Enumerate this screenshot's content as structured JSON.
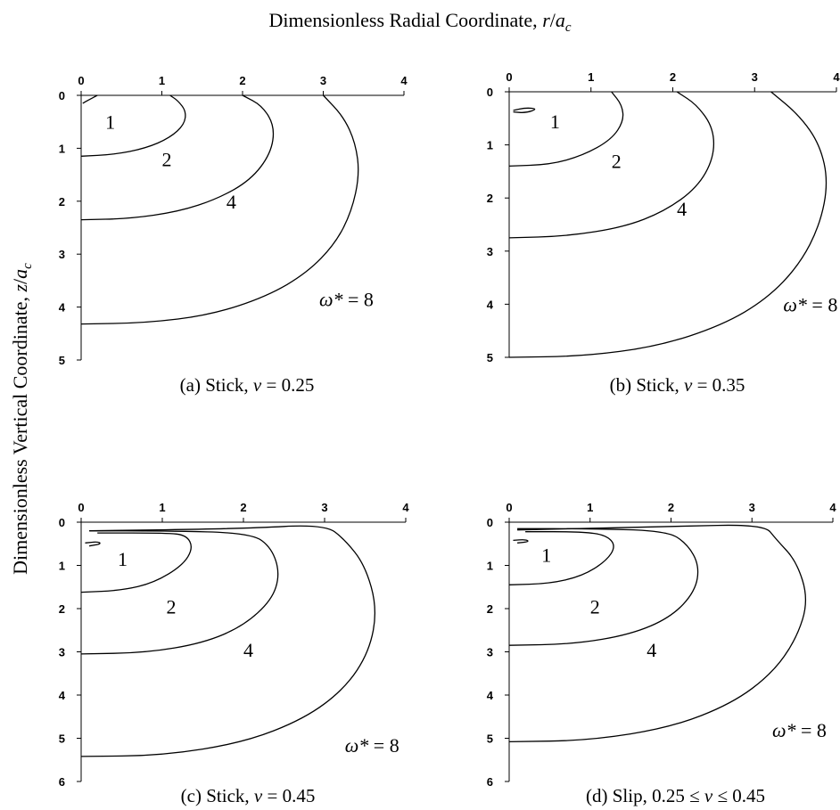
{
  "figure": {
    "top_label": "Dimensionless Radial Coordinate, r/a",
    "top_label_main": "Dimensionless Radial Coordinate, ",
    "top_label_var": "r",
    "top_label_slash": "/",
    "top_label_sub_base": "a",
    "top_label_sub": "c",
    "side_label_main": "Dimensionless Vertical Coordinate, ",
    "side_label_var": "z",
    "side_label_slash": "/",
    "side_label_sub_base": "a",
    "side_label_sub": "c"
  },
  "chart_data": [
    {
      "type": "line",
      "panel": "a",
      "caption": "(a) Stick, ν = 0.25",
      "x_ticks": [
        "0",
        "1",
        "2",
        "3",
        "4"
      ],
      "y_ticks": [
        "0",
        "1",
        "2",
        "3",
        "4",
        "5"
      ],
      "xlim": [
        0,
        4
      ],
      "ylim": [
        0,
        5
      ],
      "contours": [
        {
          "label": "1",
          "label_pos": [
            0.3,
            0.5
          ],
          "points": [
            [
              0.02,
              0.15
            ],
            [
              0.1,
              0.08
            ],
            [
              0.2,
              0.0
            ]
          ]
        },
        {
          "label": "2",
          "label_pos": [
            1.0,
            1.2
          ],
          "points": [
            [
              0,
              1.15
            ],
            [
              0.4,
              1.12
            ],
            [
              0.8,
              1.0
            ],
            [
              1.1,
              0.8
            ],
            [
              1.28,
              0.55
            ],
            [
              1.3,
              0.3
            ],
            [
              1.2,
              0.1
            ],
            [
              1.1,
              0.0
            ]
          ]
        },
        {
          "label": "4",
          "label_pos": [
            1.8,
            2.0
          ],
          "points": [
            [
              0,
              2.35
            ],
            [
              0.6,
              2.33
            ],
            [
              1.2,
              2.2
            ],
            [
              1.7,
              1.95
            ],
            [
              2.1,
              1.6
            ],
            [
              2.35,
              1.1
            ],
            [
              2.4,
              0.6
            ],
            [
              2.25,
              0.2
            ],
            [
              2.0,
              0.0
            ]
          ]
        },
        {
          "label": "ω* = 8",
          "label_pos": [
            2.95,
            3.85
          ],
          "points": [
            [
              0,
              4.32
            ],
            [
              0.8,
              4.3
            ],
            [
              1.6,
              4.15
            ],
            [
              2.3,
              3.8
            ],
            [
              2.8,
              3.35
            ],
            [
              3.15,
              2.8
            ],
            [
              3.35,
              2.2
            ],
            [
              3.45,
              1.5
            ],
            [
              3.4,
              0.9
            ],
            [
              3.25,
              0.4
            ],
            [
              3.0,
              0.0
            ]
          ]
        }
      ]
    },
    {
      "type": "line",
      "panel": "b",
      "caption": "(b) Stick, ν = 0.35",
      "x_ticks": [
        "0",
        "1",
        "2",
        "3",
        "4"
      ],
      "y_ticks": [
        "0",
        "1",
        "2",
        "3",
        "4",
        "5"
      ],
      "xlim": [
        0,
        4
      ],
      "ylim": [
        0,
        5
      ],
      "contours": [
        {
          "label": "1",
          "label_pos": [
            0.5,
            0.55
          ],
          "points": [
            [
              0.05,
              0.35
            ],
            [
              0.2,
              0.3
            ],
            [
              0.35,
              0.32
            ],
            [
              0.2,
              0.4
            ],
            [
              0.05,
              0.38
            ]
          ]
        },
        {
          "label": "2",
          "label_pos": [
            1.25,
            1.3
          ],
          "points": [
            [
              0,
              1.4
            ],
            [
              0.5,
              1.37
            ],
            [
              0.9,
              1.2
            ],
            [
              1.25,
              0.9
            ],
            [
              1.4,
              0.55
            ],
            [
              1.38,
              0.25
            ],
            [
              1.25,
              0.0
            ]
          ]
        },
        {
          "label": "4",
          "label_pos": [
            2.05,
            2.2
          ],
          "points": [
            [
              0,
              2.75
            ],
            [
              0.7,
              2.72
            ],
            [
              1.4,
              2.55
            ],
            [
              1.9,
              2.25
            ],
            [
              2.3,
              1.8
            ],
            [
              2.5,
              1.25
            ],
            [
              2.5,
              0.7
            ],
            [
              2.3,
              0.25
            ],
            [
              2.05,
              0.0
            ]
          ]
        },
        {
          "label": "ω* = 8",
          "label_pos": [
            3.35,
            4.0
          ],
          "points": [
            [
              0,
              5.0
            ],
            [
              0.9,
              4.98
            ],
            [
              1.8,
              4.8
            ],
            [
              2.6,
              4.4
            ],
            [
              3.15,
              3.9
            ],
            [
              3.55,
              3.25
            ],
            [
              3.8,
              2.5
            ],
            [
              3.9,
              1.7
            ],
            [
              3.8,
              1.0
            ],
            [
              3.55,
              0.45
            ],
            [
              3.2,
              0.0
            ]
          ]
        }
      ]
    },
    {
      "type": "line",
      "panel": "c",
      "caption": "(c) Stick, ν = 0.45",
      "x_ticks": [
        "0",
        "1",
        "2",
        "3",
        "4"
      ],
      "y_ticks": [
        "0",
        "1",
        "2",
        "3",
        "4",
        "5",
        "6"
      ],
      "xlim": [
        0,
        4
      ],
      "ylim": [
        0,
        6
      ],
      "contours": [
        {
          "label": "1",
          "label_pos": [
            0.45,
            0.85
          ],
          "points": [
            [
              0.05,
              0.48
            ],
            [
              0.2,
              0.45
            ],
            [
              0.25,
              0.5
            ],
            [
              0.1,
              0.55
            ]
          ]
        },
        {
          "label": "2",
          "label_pos": [
            1.05,
            1.95
          ],
          "points": [
            [
              0,
              1.62
            ],
            [
              0.5,
              1.58
            ],
            [
              0.9,
              1.4
            ],
            [
              1.25,
              1.0
            ],
            [
              1.38,
              0.6
            ],
            [
              1.3,
              0.3
            ],
            [
              1.05,
              0.25
            ],
            [
              0.2,
              0.25
            ]
          ]
        },
        {
          "label": "4",
          "label_pos": [
            2.0,
            2.95
          ],
          "points": [
            [
              0,
              3.05
            ],
            [
              0.8,
              3.02
            ],
            [
              1.5,
              2.8
            ],
            [
              2.0,
              2.4
            ],
            [
              2.35,
              1.8
            ],
            [
              2.45,
              1.2
            ],
            [
              2.35,
              0.6
            ],
            [
              2.1,
              0.25
            ],
            [
              1.0,
              0.2
            ],
            [
              0.1,
              0.2
            ]
          ]
        },
        {
          "label": "ω* = 8",
          "label_pos": [
            3.25,
            5.15
          ],
          "points": [
            [
              0,
              5.42
            ],
            [
              1.0,
              5.4
            ],
            [
              2.0,
              5.1
            ],
            [
              2.75,
              4.55
            ],
            [
              3.25,
              3.85
            ],
            [
              3.55,
              3.0
            ],
            [
              3.65,
              2.0
            ],
            [
              3.5,
              1.0
            ],
            [
              3.25,
              0.4
            ],
            [
              3.0,
              0.05
            ],
            [
              2.0,
              0.15
            ],
            [
              0.1,
              0.2
            ]
          ]
        }
      ]
    },
    {
      "type": "line",
      "panel": "d",
      "caption": "(d) Slip, 0.25 ≤ ν ≤ 0.45",
      "x_ticks": [
        "0",
        "1",
        "2",
        "3",
        "4"
      ],
      "y_ticks": [
        "0",
        "1",
        "2",
        "3",
        "4",
        "5",
        "6"
      ],
      "xlim": [
        0,
        4
      ],
      "ylim": [
        0,
        6
      ],
      "contours": [
        {
          "label": "1",
          "label_pos": [
            0.4,
            0.75
          ],
          "points": [
            [
              0.05,
              0.42
            ],
            [
              0.2,
              0.4
            ],
            [
              0.25,
              0.45
            ],
            [
              0.1,
              0.48
            ]
          ]
        },
        {
          "label": "2",
          "label_pos": [
            1.0,
            1.95
          ],
          "points": [
            [
              0,
              1.45
            ],
            [
              0.5,
              1.42
            ],
            [
              0.9,
              1.25
            ],
            [
              1.2,
              0.9
            ],
            [
              1.32,
              0.55
            ],
            [
              1.2,
              0.3
            ],
            [
              0.9,
              0.22
            ],
            [
              0.2,
              0.22
            ]
          ]
        },
        {
          "label": "4",
          "label_pos": [
            1.7,
            2.95
          ],
          "points": [
            [
              0,
              2.85
            ],
            [
              0.8,
              2.82
            ],
            [
              1.5,
              2.6
            ],
            [
              2.0,
              2.2
            ],
            [
              2.3,
              1.6
            ],
            [
              2.35,
              1.0
            ],
            [
              2.2,
              0.5
            ],
            [
              1.95,
              0.2
            ],
            [
              1.0,
              0.15
            ],
            [
              0.1,
              0.15
            ]
          ]
        },
        {
          "label": "ω* = 8",
          "label_pos": [
            3.25,
            4.8
          ],
          "points": [
            [
              0,
              5.08
            ],
            [
              1.0,
              5.05
            ],
            [
              2.0,
              4.75
            ],
            [
              2.75,
              4.2
            ],
            [
              3.25,
              3.5
            ],
            [
              3.55,
              2.7
            ],
            [
              3.7,
              1.8
            ],
            [
              3.55,
              0.9
            ],
            [
              3.3,
              0.4
            ],
            [
              3.15,
              0.05
            ],
            [
              2.0,
              0.1
            ],
            [
              0.1,
              0.18
            ]
          ]
        }
      ]
    }
  ]
}
